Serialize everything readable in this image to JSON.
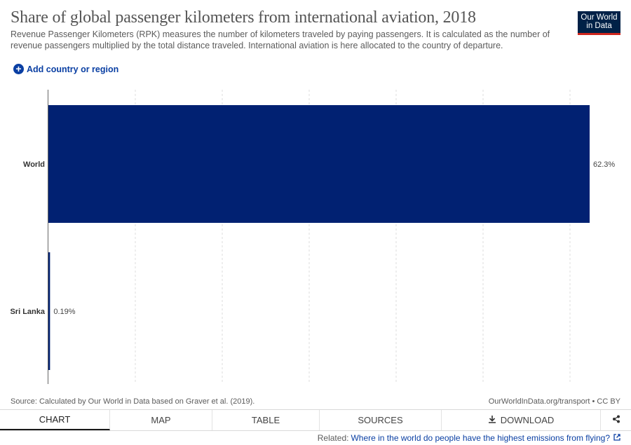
{
  "header": {
    "title": "Share of global passenger kilometers from international aviation, 2018",
    "subtitle": "Revenue Passenger Kilometers (RPK) measures the number of kilometers traveled by paying passengers. It is calculated as the number of revenue passengers multiplied by the total distance traveled. International aviation is here allocated to the country of departure.",
    "logo_line1": "Our World",
    "logo_line2": "in Data",
    "add_country_label": "Add country or region"
  },
  "colors": {
    "bar": "#012172",
    "grid": "#dddddd",
    "axis": "#666666",
    "logo_bg": "#002147",
    "logo_accent": "#ce261e",
    "link": "#0a3fa3"
  },
  "chart_data": {
    "type": "bar",
    "orientation": "horizontal",
    "categories": [
      "World",
      "Sri Lanka"
    ],
    "values": [
      62.3,
      0.19
    ],
    "value_labels": [
      "62.3%",
      "0.19%"
    ],
    "unit": "%",
    "xlim": [
      0,
      62.3
    ],
    "grid": "vertical-dashed"
  },
  "footer": {
    "source": "Source: Calculated by Our World in Data based on Graver et al. (2019).",
    "license": "OurWorldInData.org/transport • CC BY",
    "related_prefix": "Related:",
    "related_link": "Where in the world do people have the highest emissions from flying?"
  },
  "tabs": [
    {
      "label": "Chart",
      "icon": "",
      "active": true
    },
    {
      "label": "Map",
      "icon": "",
      "active": false
    },
    {
      "label": "Table",
      "icon": "",
      "active": false
    },
    {
      "label": "Sources",
      "icon": "",
      "active": false
    },
    {
      "label": "Download",
      "icon": "download-icon",
      "active": false
    }
  ],
  "share_icon": "share-icon"
}
